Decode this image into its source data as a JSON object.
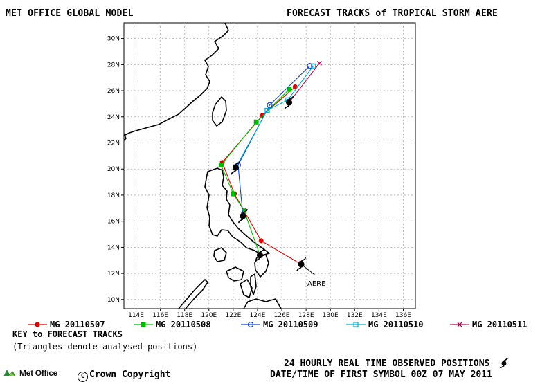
{
  "header": {
    "left_title": "MET OFFICE GLOBAL MODEL",
    "right_title": "FORECAST TRACKS of TROPICAL STORM AERE"
  },
  "axes": {
    "lon_ticks": [
      "114E",
      "116E",
      "118E",
      "120E",
      "122E",
      "124E",
      "126E",
      "128E",
      "130E",
      "132E",
      "134E",
      "136E"
    ],
    "lat_ticks": [
      "10N",
      "12N",
      "14N",
      "16N",
      "18N",
      "20N",
      "22N",
      "24N",
      "26N",
      "28N",
      "30N"
    ],
    "lon_range": [
      113,
      137
    ],
    "lat_range": [
      9.3,
      31.2
    ]
  },
  "storm_label": "AERE",
  "legend": {
    "items": [
      {
        "label": "MG 20110507",
        "color": "#dd0000",
        "marker": "filled-circle"
      },
      {
        "label": "MG 20110508",
        "color": "#00bb00",
        "marker": "filled-square"
      },
      {
        "label": "MG 20110509",
        "color": "#1144cc",
        "marker": "open-circle"
      },
      {
        "label": "MG 20110510",
        "color": "#00aacc",
        "marker": "open-square"
      },
      {
        "label": "MG 20110511",
        "color": "#aa1155",
        "marker": "x"
      }
    ]
  },
  "key": {
    "title": "KEY to FORECAST TRACKS",
    "note": "(Triangles denote analysed positions)"
  },
  "footer": {
    "logo_text": "Met Office",
    "copyright": "Crown Copyright",
    "observed": "24 HOURLY REAL TIME OBSERVED POSITIONS",
    "date": "DATE/TIME OF FIRST SYMBOL 00Z 07 MAY 2011"
  },
  "chart_data": {
    "type": "scatter",
    "observed_track": [
      [
        127.6,
        12.7
      ],
      [
        124.2,
        13.4
      ],
      [
        122.8,
        16.4
      ],
      [
        122.2,
        20.1
      ],
      [
        126.6,
        25.1
      ]
    ],
    "observed_extension": [
      [
        127.6,
        12.7
      ],
      [
        128.7,
        11.9
      ]
    ],
    "tracks": [
      {
        "name": "MG 20110507",
        "points": [
          [
            127.6,
            12.7
          ],
          [
            124.3,
            14.5
          ],
          [
            122.1,
            18.1
          ],
          [
            121.1,
            20.5
          ],
          [
            124.4,
            24.1
          ],
          [
            127.1,
            26.3
          ]
        ]
      },
      {
        "name": "MG 20110508",
        "points": [
          [
            124.2,
            13.4
          ],
          [
            122.9,
            16.8
          ],
          [
            122.0,
            18.1
          ],
          [
            121.0,
            20.3
          ],
          [
            123.9,
            23.6
          ],
          [
            126.6,
            26.1
          ]
        ]
      },
      {
        "name": "MG 20110509",
        "points": [
          [
            122.8,
            16.4
          ],
          [
            122.4,
            20.3
          ],
          [
            125.0,
            24.9
          ],
          [
            128.3,
            27.9
          ]
        ]
      },
      {
        "name": "MG 20110510",
        "points": [
          [
            122.2,
            20.1
          ],
          [
            124.8,
            24.5
          ],
          [
            126.5,
            25.3
          ],
          [
            128.6,
            27.9
          ]
        ]
      },
      {
        "name": "MG 20110511",
        "points": [
          [
            126.6,
            25.1
          ],
          [
            129.1,
            28.1
          ]
        ]
      }
    ]
  }
}
